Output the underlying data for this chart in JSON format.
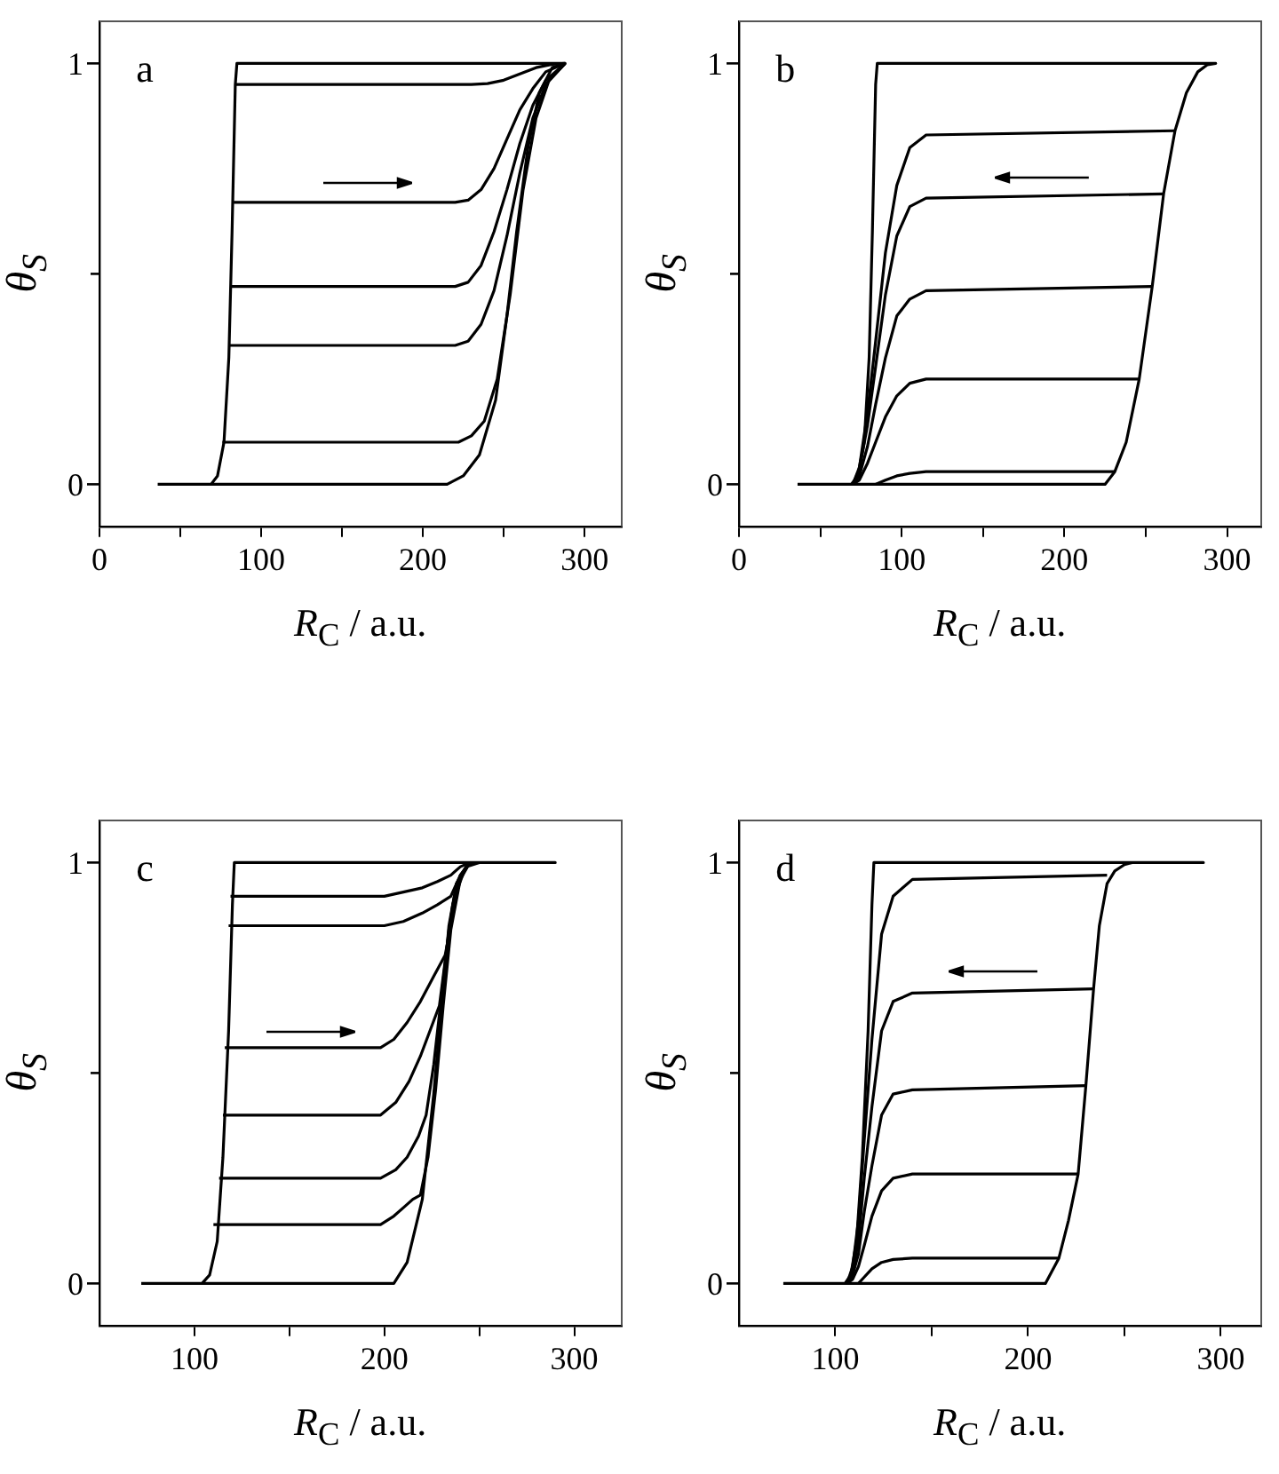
{
  "chart_data": [
    {
      "type": "line",
      "annotations": [
        "a"
      ],
      "xlabel": "R$_{C}$ / a.u.",
      "ylabel": "θ$_{S}$",
      "xlim": [
        0,
        323
      ],
      "ylim": [
        -0.1,
        1.1
      ],
      "xticks": [
        0,
        {
          "value": 50,
          "label": null
        },
        100,
        {
          "value": 150,
          "label": null
        },
        200,
        {
          "value": 250,
          "label": null
        },
        300
      ],
      "yticks": [
        {
          "value": 0,
          "label": "0"
        },
        {
          "value": 0.5,
          "label": null
        },
        {
          "value": 1,
          "label": "1"
        }
      ],
      "grid": false,
      "legend": false,
      "marker": "none",
      "series": [
        {
          "color": "#000000",
          "x": [
            36,
            215,
            225,
            235,
            245,
            252,
            258,
            265,
            272,
            280,
            288,
            85,
            84,
            82,
            80,
            77,
            73,
            69
          ],
          "values": [
            0,
            0,
            0.02,
            0.07,
            0.2,
            0.4,
            0.6,
            0.8,
            0.93,
            0.99,
            1,
            1,
            0.95,
            0.6,
            0.3,
            0.1,
            0.02,
            0
          ]
        },
        {
          "color": "#000000",
          "x": [
            84,
            230,
            240,
            250,
            260,
            270,
            280,
            288
          ],
          "values": [
            0.95,
            0.95,
            0.952,
            0.96,
            0.975,
            0.99,
            0.998,
            1
          ]
        },
        {
          "color": "#000000",
          "x": [
            83,
            220,
            228,
            236,
            244,
            252,
            260,
            268,
            276,
            288
          ],
          "values": [
            0.67,
            0.67,
            0.675,
            0.7,
            0.75,
            0.82,
            0.89,
            0.94,
            0.98,
            1
          ]
        },
        {
          "color": "#000000",
          "x": [
            81,
            220,
            228,
            236,
            244,
            252,
            260,
            268,
            276,
            288
          ],
          "values": [
            0.47,
            0.47,
            0.48,
            0.52,
            0.6,
            0.7,
            0.81,
            0.9,
            0.96,
            1
          ]
        },
        {
          "color": "#000000",
          "x": [
            80,
            220,
            228,
            236,
            244,
            252,
            260,
            268,
            276,
            288
          ],
          "values": [
            0.33,
            0.33,
            0.34,
            0.38,
            0.46,
            0.59,
            0.74,
            0.87,
            0.95,
            1
          ]
        },
        {
          "color": "#000000",
          "x": [
            76,
            222,
            230,
            238,
            246,
            254,
            262,
            270,
            278,
            288
          ],
          "values": [
            0.1,
            0.1,
            0.115,
            0.15,
            0.25,
            0.45,
            0.7,
            0.87,
            0.96,
            1
          ]
        }
      ]
    },
    {
      "type": "line",
      "annotations": [
        "b"
      ],
      "xlabel": "R$_{C}$ / a.u.",
      "ylabel": "θ$_{S}$",
      "xlim": [
        0,
        321
      ],
      "ylim": [
        -0.1,
        1.1
      ],
      "xticks": [
        0,
        {
          "value": 50,
          "label": null
        },
        100,
        {
          "value": 150,
          "label": null
        },
        200,
        {
          "value": 250,
          "label": null
        },
        300
      ],
      "yticks": [
        {
          "value": 0,
          "label": "0"
        },
        {
          "value": 0.5,
          "label": null
        },
        {
          "value": 1,
          "label": "1"
        }
      ],
      "grid": false,
      "legend": false,
      "marker": "none",
      "series": [
        {
          "color": "#000000",
          "x": [
            36,
            225,
            231,
            238,
            246,
            254,
            261,
            268,
            275,
            282,
            288,
            293,
            85,
            84,
            82,
            80,
            77,
            73,
            69
          ],
          "values": [
            0,
            0,
            0.03,
            0.1,
            0.25,
            0.47,
            0.69,
            0.84,
            0.93,
            0.98,
            0.997,
            1,
            1,
            0.95,
            0.6,
            0.3,
            0.1,
            0.02,
            0
          ]
        },
        {
          "color": "#000000",
          "x": [
            268,
            115,
            105,
            97,
            90,
            84,
            79,
            74,
            70
          ],
          "values": [
            0.84,
            0.83,
            0.8,
            0.71,
            0.55,
            0.34,
            0.17,
            0.04,
            0
          ]
        },
        {
          "color": "#000000",
          "x": [
            261,
            115,
            105,
            97,
            90,
            84,
            79,
            74,
            70
          ],
          "values": [
            0.69,
            0.68,
            0.66,
            0.59,
            0.45,
            0.28,
            0.14,
            0.035,
            0
          ]
        },
        {
          "color": "#000000",
          "x": [
            254,
            115,
            105,
            97,
            90,
            84,
            79,
            74,
            70
          ],
          "values": [
            0.47,
            0.46,
            0.44,
            0.4,
            0.3,
            0.19,
            0.09,
            0.02,
            0
          ]
        },
        {
          "color": "#000000",
          "x": [
            246,
            115,
            105,
            97,
            90,
            84,
            79,
            74,
            70
          ],
          "values": [
            0.25,
            0.25,
            0.24,
            0.21,
            0.16,
            0.1,
            0.05,
            0.01,
            0
          ]
        },
        {
          "color": "#000000",
          "x": [
            231,
            115,
            105,
            97,
            90,
            84
          ],
          "values": [
            0.03,
            0.03,
            0.026,
            0.02,
            0.01,
            0
          ]
        }
      ]
    },
    {
      "type": "line",
      "annotations": [
        "c"
      ],
      "xlabel": "R$_{C}$ / a.u.",
      "ylabel": "θ$_{S}$",
      "xlim": [
        50,
        325
      ],
      "ylim": [
        -0.1,
        1.1
      ],
      "xticks": [
        100,
        {
          "value": 150,
          "label": null
        },
        200,
        {
          "value": 250,
          "label": null
        },
        300
      ],
      "yticks": [
        {
          "value": 0,
          "label": "0"
        },
        {
          "value": 0.5,
          "label": null
        },
        {
          "value": 1,
          "label": "1"
        }
      ],
      "grid": false,
      "legend": false,
      "marker": "none",
      "series": [
        {
          "color": "#000000",
          "x": [
            72,
            205,
            212,
            220,
            226,
            230,
            234,
            238,
            243,
            250,
            290,
            121,
            120,
            118,
            115,
            112,
            108,
            104
          ],
          "values": [
            0,
            0,
            0.05,
            0.2,
            0.45,
            0.65,
            0.85,
            0.95,
            0.99,
            1,
            1,
            1,
            0.9,
            0.6,
            0.3,
            0.1,
            0.02,
            0
          ]
        },
        {
          "color": "#000000",
          "x": [
            119,
            200,
            210,
            220,
            228,
            235,
            240,
            245
          ],
          "values": [
            0.92,
            0.92,
            0.93,
            0.94,
            0.955,
            0.97,
            0.99,
            1
          ]
        },
        {
          "color": "#000000",
          "x": [
            118,
            200,
            210,
            220,
            228,
            235,
            240,
            245
          ],
          "values": [
            0.85,
            0.85,
            0.86,
            0.88,
            0.9,
            0.92,
            0.97,
            1
          ]
        },
        {
          "color": "#000000",
          "x": [
            116,
            198,
            205,
            212,
            219,
            226,
            232,
            235,
            238,
            242,
            245
          ],
          "values": [
            0.56,
            0.56,
            0.58,
            0.62,
            0.67,
            0.73,
            0.78,
            0.85,
            0.93,
            0.98,
            1
          ]
        },
        {
          "color": "#000000",
          "x": [
            115,
            198,
            206,
            213,
            219,
            224,
            229,
            233,
            236,
            240,
            245
          ],
          "values": [
            0.4,
            0.4,
            0.43,
            0.48,
            0.54,
            0.6,
            0.66,
            0.8,
            0.9,
            0.97,
            1
          ]
        },
        {
          "color": "#000000",
          "x": [
            113,
            198,
            206,
            212,
            218,
            222,
            226,
            230,
            234,
            238,
            245
          ],
          "values": [
            0.25,
            0.25,
            0.27,
            0.3,
            0.35,
            0.4,
            0.52,
            0.68,
            0.84,
            0.95,
            1
          ]
        },
        {
          "color": "#000000",
          "x": [
            110,
            198,
            205,
            210,
            215,
            219,
            223,
            227,
            231,
            235,
            240,
            245
          ],
          "values": [
            0.14,
            0.14,
            0.16,
            0.18,
            0.2,
            0.21,
            0.3,
            0.46,
            0.66,
            0.84,
            0.96,
            1
          ]
        }
      ]
    },
    {
      "type": "line",
      "annotations": [
        "d"
      ],
      "xlabel": "R$_{C}$ / a.u.",
      "ylabel": "θ$_{S}$",
      "xlim": [
        50,
        321
      ],
      "ylim": [
        -0.1,
        1.1
      ],
      "xticks": [
        100,
        {
          "value": 150,
          "label": null
        },
        200,
        {
          "value": 250,
          "label": null
        },
        300
      ],
      "yticks": [
        {
          "value": 0,
          "label": "0"
        },
        {
          "value": 0.5,
          "label": null
        },
        {
          "value": 1,
          "label": "1"
        }
      ],
      "grid": false,
      "legend": false,
      "marker": "none",
      "series": [
        {
          "color": "#000000",
          "x": [
            73,
            209,
            216,
            221,
            226,
            230,
            234,
            237,
            241,
            245,
            250,
            254,
            291,
            120,
            119,
            117,
            114,
            111,
            108,
            105
          ],
          "values": [
            0,
            0,
            0.06,
            0.15,
            0.26,
            0.47,
            0.7,
            0.85,
            0.95,
            0.98,
            0.995,
            1,
            1,
            1,
            0.9,
            0.6,
            0.3,
            0.1,
            0.02,
            0
          ]
        },
        {
          "color": "#000000",
          "x": [
            241,
            140,
            130,
            124,
            119,
            115,
            112,
            109,
            106
          ],
          "values": [
            0.97,
            0.96,
            0.92,
            0.83,
            0.58,
            0.34,
            0.15,
            0.04,
            0
          ]
        },
        {
          "color": "#000000",
          "x": [
            234,
            140,
            130,
            124,
            119,
            115,
            112,
            109,
            106
          ],
          "values": [
            0.7,
            0.69,
            0.67,
            0.6,
            0.42,
            0.25,
            0.1,
            0.03,
            0
          ]
        },
        {
          "color": "#000000",
          "x": [
            230,
            140,
            130,
            124,
            119,
            115,
            112,
            109,
            106
          ],
          "values": [
            0.47,
            0.46,
            0.45,
            0.4,
            0.28,
            0.17,
            0.07,
            0.02,
            0
          ]
        },
        {
          "color": "#000000",
          "x": [
            226,
            140,
            130,
            124,
            119,
            115,
            112,
            109,
            106
          ],
          "values": [
            0.26,
            0.26,
            0.25,
            0.22,
            0.16,
            0.09,
            0.04,
            0.01,
            0
          ]
        },
        {
          "color": "#000000",
          "x": [
            216,
            140,
            130,
            124,
            119,
            115,
            112
          ],
          "values": [
            0.06,
            0.06,
            0.057,
            0.05,
            0.035,
            0.015,
            0
          ]
        }
      ]
    }
  ]
}
